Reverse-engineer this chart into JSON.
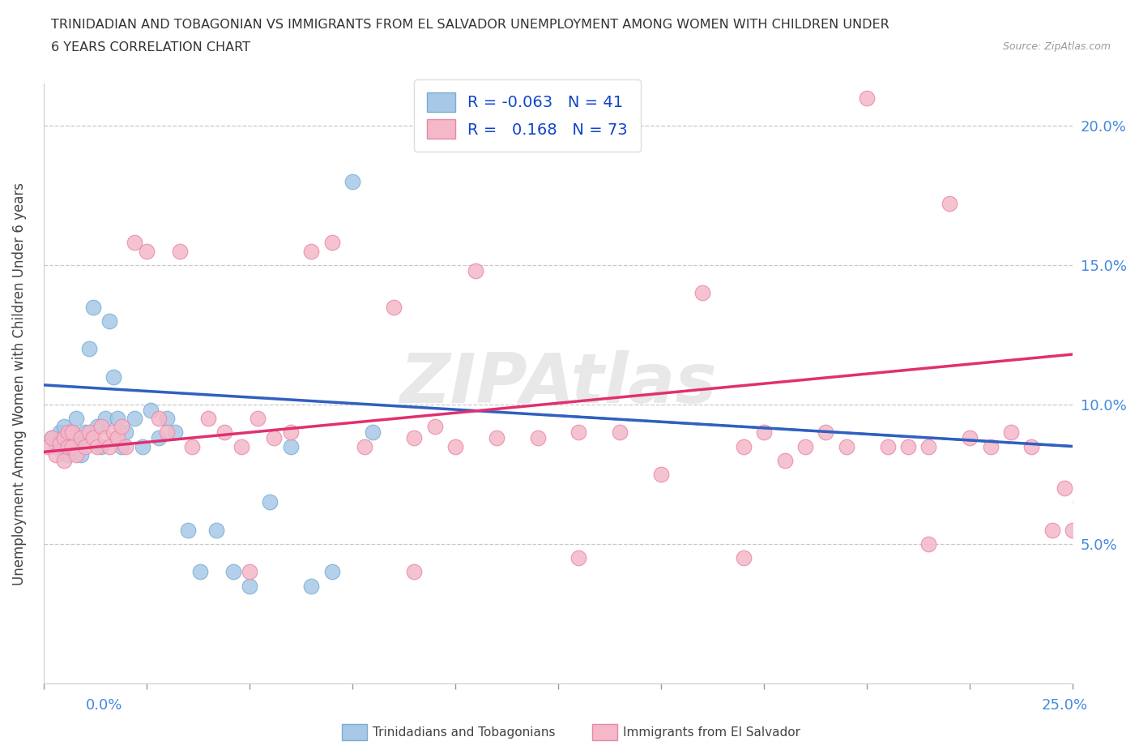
{
  "title_line1": "TRINIDADIAN AND TOBAGONIAN VS IMMIGRANTS FROM EL SALVADOR UNEMPLOYMENT AMONG WOMEN WITH CHILDREN UNDER",
  "title_line2": "6 YEARS CORRELATION CHART",
  "source": "Source: ZipAtlas.com",
  "ylabel": "Unemployment Among Women with Children Under 6 years",
  "legend1_label": "Trinidadians and Tobagonians",
  "legend2_label": "Immigrants from El Salvador",
  "r1": -0.063,
  "n1": 41,
  "r2": 0.168,
  "n2": 73,
  "blue_color": "#a8c8e8",
  "blue_edge_color": "#7aaed0",
  "pink_color": "#f4b8c8",
  "pink_edge_color": "#e888a8",
  "blue_line_color": "#3060c0",
  "pink_line_color": "#e03070",
  "watermark": "ZIPAtlas",
  "xlim": [
    0.0,
    0.25
  ],
  "ylim": [
    0.0,
    0.215
  ],
  "blue_trend_x0": 0.0,
  "blue_trend_y0": 0.107,
  "blue_trend_x1": 0.25,
  "blue_trend_y1": 0.085,
  "pink_trend_x0": 0.0,
  "pink_trend_y0": 0.083,
  "pink_trend_x1": 0.25,
  "pink_trend_y1": 0.118,
  "blue_x": [
    0.002,
    0.003,
    0.004,
    0.005,
    0.005,
    0.006,
    0.006,
    0.007,
    0.007,
    0.008,
    0.008,
    0.009,
    0.009,
    0.01,
    0.011,
    0.012,
    0.013,
    0.014,
    0.015,
    0.016,
    0.017,
    0.018,
    0.019,
    0.02,
    0.022,
    0.024,
    0.026,
    0.028,
    0.03,
    0.032,
    0.035,
    0.038,
    0.042,
    0.046,
    0.05,
    0.055,
    0.06,
    0.065,
    0.07,
    0.075,
    0.08
  ],
  "blue_y": [
    0.088,
    0.085,
    0.09,
    0.085,
    0.092,
    0.088,
    0.082,
    0.09,
    0.085,
    0.095,
    0.088,
    0.082,
    0.088,
    0.09,
    0.12,
    0.135,
    0.092,
    0.085,
    0.095,
    0.13,
    0.11,
    0.095,
    0.085,
    0.09,
    0.095,
    0.085,
    0.098,
    0.088,
    0.095,
    0.09,
    0.055,
    0.04,
    0.055,
    0.04,
    0.035,
    0.065,
    0.085,
    0.035,
    0.04,
    0.18,
    0.09
  ],
  "pink_x": [
    0.001,
    0.002,
    0.003,
    0.004,
    0.005,
    0.005,
    0.006,
    0.006,
    0.007,
    0.007,
    0.008,
    0.009,
    0.01,
    0.011,
    0.012,
    0.013,
    0.014,
    0.015,
    0.016,
    0.017,
    0.018,
    0.019,
    0.02,
    0.022,
    0.025,
    0.028,
    0.03,
    0.033,
    0.036,
    0.04,
    0.044,
    0.048,
    0.052,
    0.056,
    0.06,
    0.065,
    0.07,
    0.078,
    0.085,
    0.09,
    0.095,
    0.1,
    0.105,
    0.11,
    0.12,
    0.13,
    0.14,
    0.15,
    0.16,
    0.17,
    0.175,
    0.18,
    0.185,
    0.19,
    0.195,
    0.2,
    0.205,
    0.21,
    0.215,
    0.22,
    0.225,
    0.23,
    0.235,
    0.24,
    0.245,
    0.248,
    0.25,
    0.252,
    0.215,
    0.17,
    0.13,
    0.09,
    0.05
  ],
  "pink_y": [
    0.085,
    0.088,
    0.082,
    0.086,
    0.088,
    0.08,
    0.085,
    0.09,
    0.085,
    0.09,
    0.082,
    0.088,
    0.085,
    0.09,
    0.088,
    0.085,
    0.092,
    0.088,
    0.085,
    0.09,
    0.088,
    0.092,
    0.085,
    0.158,
    0.155,
    0.095,
    0.09,
    0.155,
    0.085,
    0.095,
    0.09,
    0.085,
    0.095,
    0.088,
    0.09,
    0.155,
    0.158,
    0.085,
    0.135,
    0.088,
    0.092,
    0.085,
    0.148,
    0.088,
    0.088,
    0.09,
    0.09,
    0.075,
    0.14,
    0.085,
    0.09,
    0.08,
    0.085,
    0.09,
    0.085,
    0.21,
    0.085,
    0.085,
    0.085,
    0.172,
    0.088,
    0.085,
    0.09,
    0.085,
    0.055,
    0.07,
    0.055,
    0.065,
    0.05,
    0.045,
    0.045,
    0.04,
    0.04
  ]
}
